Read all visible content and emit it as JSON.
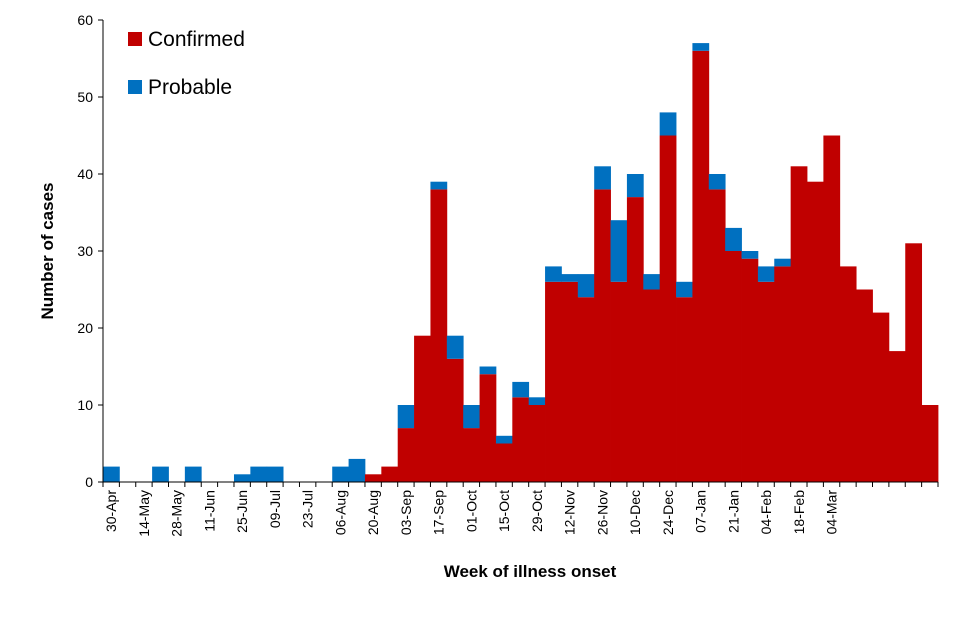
{
  "chart_data": {
    "type": "bar",
    "stacked": true,
    "title": "",
    "xlabel": "Week of illness onset",
    "ylabel": "Number of cases",
    "ylim": [
      0,
      60
    ],
    "yticks": [
      0,
      10,
      20,
      30,
      40,
      50,
      60
    ],
    "grid": false,
    "legend_position": "top-left",
    "x_tick_labels": [
      "30-Apr",
      "14-May",
      "28-May",
      "11-Jun",
      "25-Jun",
      "09-Jul",
      "23-Jul",
      "06-Aug",
      "20-Aug",
      "03-Sep",
      "17-Sep",
      "01-Oct",
      "15-Oct",
      "29-Oct",
      "12-Nov",
      "26-Nov",
      "10-Dec",
      "24-Dec",
      "07-Jan",
      "21-Jan",
      "04-Feb",
      "18-Feb",
      "04-Mar"
    ],
    "series": [
      {
        "name": "Confirmed",
        "color": "#C00000",
        "values": [
          0,
          0,
          0,
          0,
          0,
          0,
          0,
          0,
          0,
          0,
          0,
          0,
          0,
          0,
          0,
          0,
          1,
          2,
          7,
          19,
          38,
          16,
          7,
          14,
          5,
          11,
          10,
          26,
          26,
          24,
          38,
          26,
          37,
          25,
          45,
          24,
          56,
          38,
          30,
          29,
          26,
          28,
          41,
          39,
          45,
          28,
          25,
          22,
          17,
          31,
          10
        ]
      },
      {
        "name": "Probable",
        "color": "#0070C0",
        "values": [
          2,
          0,
          0,
          2,
          0,
          2,
          0,
          0,
          1,
          2,
          2,
          0,
          0,
          0,
          2,
          3,
          0,
          0,
          3,
          0,
          1,
          3,
          3,
          1,
          1,
          2,
          1,
          2,
          1,
          3,
          3,
          8,
          3,
          2,
          3,
          2,
          1,
          2,
          3,
          1,
          2,
          1,
          0,
          0,
          0,
          0,
          0,
          0,
          0,
          0,
          0
        ]
      }
    ]
  }
}
